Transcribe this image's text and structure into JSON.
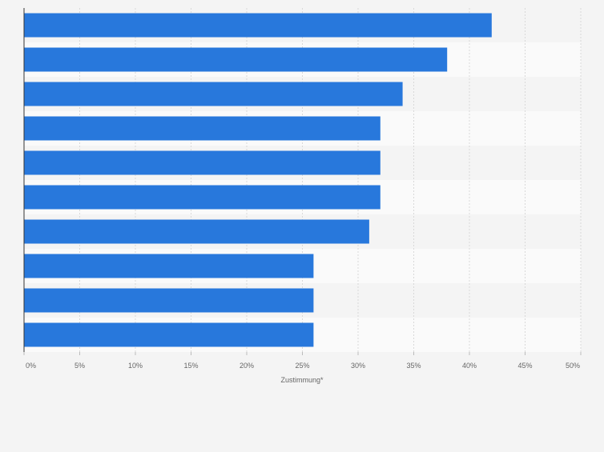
{
  "chart_data": {
    "type": "bar",
    "orientation": "horizontal",
    "categories": [
      "",
      "",
      "",
      "",
      "",
      "",
      "",
      "",
      "",
      ""
    ],
    "values": [
      42,
      38,
      34,
      32,
      32,
      32,
      31,
      26,
      26,
      26
    ],
    "xlim": [
      0,
      50
    ],
    "ticks": [
      0,
      5,
      10,
      15,
      20,
      25,
      30,
      35,
      40,
      45,
      50
    ],
    "tick_labels": [
      "0%",
      "5%",
      "10%",
      "15%",
      "20%",
      "25%",
      "30%",
      "35%",
      "40%",
      "45%",
      "50%"
    ],
    "xlabel": "Zustimmung*",
    "ylabel": "",
    "title": "",
    "grid": true,
    "bar_color": "#2878dc"
  }
}
